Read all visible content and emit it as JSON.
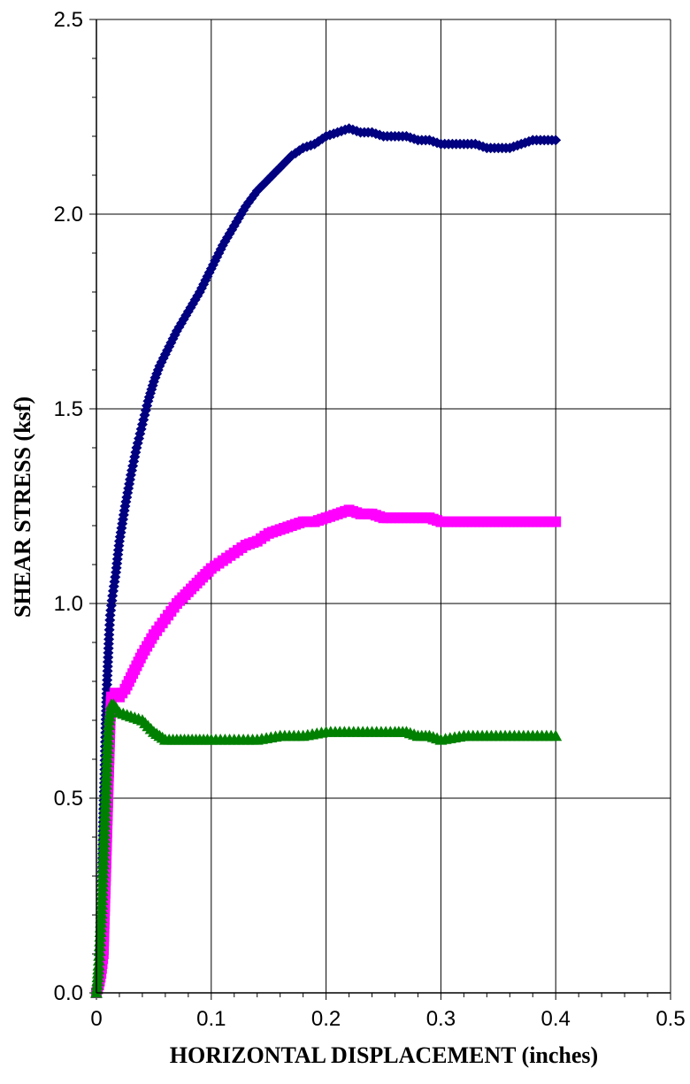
{
  "chart_data": {
    "type": "scatter",
    "title": "",
    "xlabel": "HORIZONTAL DISPLACEMENT (inches)",
    "ylabel": "SHEAR STRESS (ksf)",
    "xlim": [
      0,
      0.5
    ],
    "ylim": [
      0,
      2.5
    ],
    "x_ticks": [
      "0",
      "0.1",
      "0.2",
      "0.3",
      "0.4",
      "0.5"
    ],
    "y_ticks": [
      "0.0",
      "0.5",
      "1.0",
      "1.5",
      "2.0",
      "2.5"
    ],
    "grid": true,
    "legend": "none",
    "series": [
      {
        "color": "#000080",
        "marker": "diamond",
        "points": [
          [
            0.0,
            0.0
          ],
          [
            0.002,
            0.03
          ],
          [
            0.004,
            0.15
          ],
          [
            0.005,
            0.3
          ],
          [
            0.006,
            0.45
          ],
          [
            0.007,
            0.55
          ],
          [
            0.008,
            0.68
          ],
          [
            0.009,
            0.78
          ],
          [
            0.01,
            0.85
          ],
          [
            0.011,
            0.92
          ],
          [
            0.012,
            0.97
          ],
          [
            0.014,
            1.02
          ],
          [
            0.017,
            1.08
          ],
          [
            0.02,
            1.16
          ],
          [
            0.025,
            1.25
          ],
          [
            0.03,
            1.33
          ],
          [
            0.035,
            1.4
          ],
          [
            0.04,
            1.46
          ],
          [
            0.045,
            1.52
          ],
          [
            0.05,
            1.57
          ],
          [
            0.055,
            1.61
          ],
          [
            0.06,
            1.64
          ],
          [
            0.07,
            1.7
          ],
          [
            0.08,
            1.75
          ],
          [
            0.09,
            1.8
          ],
          [
            0.1,
            1.86
          ],
          [
            0.11,
            1.92
          ],
          [
            0.12,
            1.97
          ],
          [
            0.13,
            2.02
          ],
          [
            0.14,
            2.06
          ],
          [
            0.15,
            2.09
          ],
          [
            0.16,
            2.12
          ],
          [
            0.17,
            2.15
          ],
          [
            0.18,
            2.17
          ],
          [
            0.19,
            2.18
          ],
          [
            0.2,
            2.2
          ],
          [
            0.21,
            2.21
          ],
          [
            0.22,
            2.22
          ],
          [
            0.23,
            2.21
          ],
          [
            0.24,
            2.21
          ],
          [
            0.25,
            2.2
          ],
          [
            0.26,
            2.2
          ],
          [
            0.27,
            2.2
          ],
          [
            0.28,
            2.19
          ],
          [
            0.29,
            2.19
          ],
          [
            0.3,
            2.18
          ],
          [
            0.31,
            2.18
          ],
          [
            0.32,
            2.18
          ],
          [
            0.33,
            2.18
          ],
          [
            0.34,
            2.17
          ],
          [
            0.35,
            2.17
          ],
          [
            0.36,
            2.17
          ],
          [
            0.37,
            2.18
          ],
          [
            0.38,
            2.19
          ],
          [
            0.39,
            2.19
          ],
          [
            0.4,
            2.19
          ]
        ]
      },
      {
        "color": "#ff00ff",
        "marker": "square",
        "points": [
          [
            0.0,
            0.0
          ],
          [
            0.002,
            0.02
          ],
          [
            0.004,
            0.05
          ],
          [
            0.006,
            0.1
          ],
          [
            0.007,
            0.2
          ],
          [
            0.008,
            0.3
          ],
          [
            0.009,
            0.4
          ],
          [
            0.01,
            0.5
          ],
          [
            0.011,
            0.6
          ],
          [
            0.012,
            0.7
          ],
          [
            0.013,
            0.76
          ],
          [
            0.016,
            0.77
          ],
          [
            0.02,
            0.76
          ],
          [
            0.025,
            0.78
          ],
          [
            0.03,
            0.81
          ],
          [
            0.04,
            0.87
          ],
          [
            0.05,
            0.92
          ],
          [
            0.06,
            0.96
          ],
          [
            0.07,
            1.0
          ],
          [
            0.08,
            1.03
          ],
          [
            0.09,
            1.06
          ],
          [
            0.1,
            1.09
          ],
          [
            0.11,
            1.11
          ],
          [
            0.12,
            1.13
          ],
          [
            0.13,
            1.15
          ],
          [
            0.14,
            1.16
          ],
          [
            0.15,
            1.18
          ],
          [
            0.16,
            1.19
          ],
          [
            0.17,
            1.2
          ],
          [
            0.18,
            1.21
          ],
          [
            0.19,
            1.21
          ],
          [
            0.2,
            1.22
          ],
          [
            0.21,
            1.23
          ],
          [
            0.22,
            1.24
          ],
          [
            0.23,
            1.23
          ],
          [
            0.24,
            1.23
          ],
          [
            0.25,
            1.22
          ],
          [
            0.26,
            1.22
          ],
          [
            0.27,
            1.22
          ],
          [
            0.28,
            1.22
          ],
          [
            0.29,
            1.22
          ],
          [
            0.3,
            1.21
          ],
          [
            0.31,
            1.21
          ],
          [
            0.32,
            1.21
          ],
          [
            0.33,
            1.21
          ],
          [
            0.34,
            1.21
          ],
          [
            0.35,
            1.21
          ],
          [
            0.36,
            1.21
          ],
          [
            0.37,
            1.21
          ],
          [
            0.38,
            1.21
          ],
          [
            0.39,
            1.21
          ],
          [
            0.4,
            1.21
          ]
        ]
      },
      {
        "color": "#008000",
        "marker": "triangle",
        "points": [
          [
            0.0,
            0.0
          ],
          [
            0.001,
            0.03
          ],
          [
            0.002,
            0.07
          ],
          [
            0.003,
            0.12
          ],
          [
            0.004,
            0.18
          ],
          [
            0.005,
            0.25
          ],
          [
            0.006,
            0.33
          ],
          [
            0.007,
            0.42
          ],
          [
            0.008,
            0.5
          ],
          [
            0.009,
            0.58
          ],
          [
            0.01,
            0.65
          ],
          [
            0.011,
            0.7
          ],
          [
            0.012,
            0.72
          ],
          [
            0.013,
            0.74
          ],
          [
            0.015,
            0.74
          ],
          [
            0.02,
            0.72
          ],
          [
            0.03,
            0.71
          ],
          [
            0.04,
            0.7
          ],
          [
            0.05,
            0.67
          ],
          [
            0.055,
            0.66
          ],
          [
            0.06,
            0.65
          ],
          [
            0.07,
            0.65
          ],
          [
            0.08,
            0.65
          ],
          [
            0.09,
            0.65
          ],
          [
            0.1,
            0.65
          ],
          [
            0.12,
            0.65
          ],
          [
            0.14,
            0.65
          ],
          [
            0.16,
            0.66
          ],
          [
            0.18,
            0.66
          ],
          [
            0.2,
            0.67
          ],
          [
            0.22,
            0.67
          ],
          [
            0.24,
            0.67
          ],
          [
            0.26,
            0.67
          ],
          [
            0.27,
            0.67
          ],
          [
            0.28,
            0.66
          ],
          [
            0.29,
            0.66
          ],
          [
            0.3,
            0.65
          ],
          [
            0.32,
            0.66
          ],
          [
            0.34,
            0.66
          ],
          [
            0.36,
            0.66
          ],
          [
            0.38,
            0.66
          ],
          [
            0.4,
            0.66
          ]
        ]
      }
    ]
  }
}
